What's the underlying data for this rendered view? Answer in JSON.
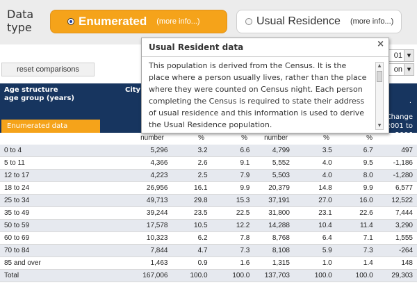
{
  "data_type": {
    "label": "Data type",
    "options": [
      {
        "label": "Enumerated",
        "more": "(more info...)",
        "selected": true
      },
      {
        "label": "Usual Residence",
        "more": "(more info...)",
        "selected": false
      }
    ]
  },
  "reset_label": "reset comparisons",
  "side_selects": [
    "01",
    "on"
  ],
  "table": {
    "age_header_1": "Age structure",
    "age_header_2": "age group (years)",
    "city_header": "City",
    "enum_tag": "Enumerated data",
    "change_header_1": "Change",
    "change_header_2": "2001 to",
    "change_header_3": "2006",
    "dot": ".",
    "subheaders": [
      "number",
      "%",
      "%",
      "number",
      "%",
      "%"
    ],
    "rows": [
      [
        "0 to 4",
        "5,296",
        "3.2",
        "6.6",
        "4,799",
        "3.5",
        "6.7",
        "497"
      ],
      [
        "5 to 11",
        "4,366",
        "2.6",
        "9.1",
        "5,552",
        "4.0",
        "9.5",
        "-1,186"
      ],
      [
        "12 to 17",
        "4,223",
        "2.5",
        "7.9",
        "5,503",
        "4.0",
        "8.0",
        "-1,280"
      ],
      [
        "18 to 24",
        "26,956",
        "16.1",
        "9.9",
        "20,379",
        "14.8",
        "9.9",
        "6,577"
      ],
      [
        "25 to 34",
        "49,713",
        "29.8",
        "15.3",
        "37,191",
        "27.0",
        "16.0",
        "12,522"
      ],
      [
        "35 to 49",
        "39,244",
        "23.5",
        "22.5",
        "31,800",
        "23.1",
        "22.6",
        "7,444"
      ],
      [
        "50 to 59",
        "17,578",
        "10.5",
        "12.2",
        "14,288",
        "10.4",
        "11.4",
        "3,290"
      ],
      [
        "60 to 69",
        "10,323",
        "6.2",
        "7.8",
        "8,768",
        "6.4",
        "7.1",
        "1,555"
      ],
      [
        "70 to 84",
        "7,844",
        "4.7",
        "7.3",
        "8,108",
        "5.9",
        "7.3",
        "-264"
      ],
      [
        "85 and over",
        "1,463",
        "0.9",
        "1.6",
        "1,315",
        "1.0",
        "1.4",
        "148"
      ],
      [
        "Total",
        "167,006",
        "100.0",
        "100.0",
        "137,703",
        "100.0",
        "100.0",
        "29,303"
      ]
    ]
  },
  "popup": {
    "title": "Usual Resident data",
    "close": "×",
    "lines": [
      "This population is derived from the Census. It is the",
      "place where a person usually lives, rather than the place",
      "where they were counted on Census night. Each person",
      "completing the Census is required to state their address",
      "of usual residence and this information is used to derive",
      "the Usual Residence population."
    ]
  }
}
